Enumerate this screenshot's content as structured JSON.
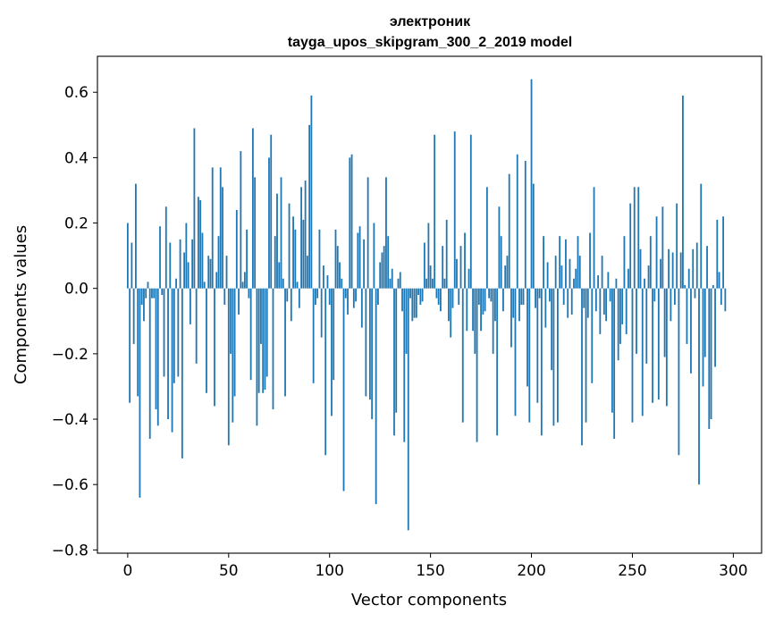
{
  "chart_data": {
    "type": "bar",
    "title": "электроник",
    "subtitle": "tayga_upos_skipgram_300_2_2019 model",
    "xlabel": "Vector components",
    "ylabel": "Components values",
    "xlim": [
      -15,
      314
    ],
    "ylim": [
      -0.81,
      0.71
    ],
    "xticks": [
      0,
      50,
      100,
      150,
      200,
      250,
      300
    ],
    "yticks": [
      -0.8,
      -0.6,
      -0.4,
      -0.2,
      0.0,
      0.2,
      0.4,
      0.6
    ],
    "xtick_labels": [
      "0",
      "50",
      "100",
      "150",
      "200",
      "250",
      "300"
    ],
    "ytick_labels": [
      "−0.8",
      "−0.6",
      "−0.4",
      "−0.2",
      "0.0",
      "0.2",
      "0.4",
      "0.6"
    ],
    "bar_color": "#1f77b4",
    "grid": false,
    "categories": "component index 0–299",
    "values": [
      0.2,
      -0.35,
      0.14,
      -0.17,
      0.32,
      -0.33,
      -0.64,
      -0.05,
      -0.1,
      -0.03,
      0.02,
      -0.46,
      -0.03,
      -0.03,
      -0.37,
      -0.42,
      0.19,
      -0.02,
      -0.27,
      0.25,
      -0.4,
      0.14,
      -0.44,
      -0.29,
      0.03,
      -0.27,
      0.15,
      -0.52,
      0.11,
      0.2,
      0.08,
      -0.11,
      0.15,
      0.49,
      -0.23,
      0.28,
      0.27,
      0.17,
      0.02,
      -0.32,
      0.1,
      0.09,
      0.37,
      -0.36,
      0.05,
      0.16,
      0.37,
      0.31,
      -0.05,
      0.1,
      -0.48,
      -0.2,
      -0.41,
      -0.33,
      0.24,
      -0.08,
      0.42,
      0.02,
      0.05,
      0.18,
      -0.03,
      -0.28,
      0.49,
      0.34,
      -0.42,
      -0.32,
      -0.17,
      -0.32,
      -0.31,
      -0.27,
      0.4,
      0.47,
      -0.37,
      0.16,
      0.29,
      0.08,
      0.34,
      0.03,
      -0.33,
      -0.04,
      0.26,
      -0.1,
      0.22,
      0.18,
      0.02,
      -0.06,
      0.31,
      0.21,
      0.33,
      0.1,
      0.5,
      0.59,
      -0.29,
      -0.05,
      -0.03,
      0.18,
      -0.15,
      0.07,
      -0.51,
      0.04,
      -0.05,
      -0.39,
      -0.28,
      0.18,
      0.13,
      0.08,
      0.03,
      -0.62,
      -0.03,
      -0.08,
      0.4,
      0.41,
      -0.06,
      -0.04,
      0.17,
      0.19,
      -0.12,
      0.15,
      -0.33,
      0.34,
      -0.34,
      -0.4,
      0.2,
      -0.66,
      -0.05,
      0.08,
      0.11,
      0.13,
      0.34,
      0.16,
      0.03,
      0.06,
      -0.45,
      -0.38,
      0.03,
      0.05,
      -0.07,
      -0.47,
      -0.2,
      -0.74,
      -0.03,
      -0.1,
      -0.09,
      -0.09,
      -0.02,
      -0.05,
      -0.04,
      0.14,
      0.03,
      0.2,
      0.07,
      0.03,
      0.47,
      -0.03,
      -0.05,
      -0.07,
      0.13,
      0.03,
      0.21,
      -0.1,
      -0.15,
      -0.06,
      0.48,
      0.09,
      -0.05,
      0.13,
      -0.41,
      0.17,
      -0.13,
      0.06,
      0.47,
      -0.13,
      -0.2,
      -0.47,
      -0.05,
      -0.13,
      -0.08,
      -0.07,
      0.31,
      -0.03,
      -0.04,
      -0.2,
      -0.1,
      -0.45,
      0.25,
      0.16,
      -0.07,
      0.07,
      0.1,
      0.35,
      -0.18,
      -0.09,
      -0.39,
      0.41,
      -0.1,
      -0.05,
      -0.05,
      0.39,
      -0.3,
      -0.41,
      0.64,
      0.32,
      -0.06,
      -0.35,
      -0.03,
      -0.45,
      0.16,
      -0.12,
      0.08,
      -0.04,
      -0.25,
      -0.42,
      0.1,
      -0.41,
      0.16,
      0.07,
      -0.05,
      0.15,
      -0.09,
      0.09,
      -0.08,
      0.03,
      0.06,
      0.16,
      0.1,
      -0.48,
      -0.06,
      -0.41,
      -0.09,
      0.17,
      -0.29,
      0.31,
      -0.07,
      0.04,
      -0.14,
      0.1,
      -0.08,
      -0.1,
      0.05,
      -0.04,
      -0.38,
      -0.46,
      0.03,
      -0.22,
      -0.17,
      -0.11,
      0.16,
      -0.14,
      0.06,
      0.26,
      -0.41,
      0.31,
      -0.2,
      0.31,
      0.12,
      -0.39,
      0.03,
      -0.23,
      0.07,
      0.16,
      -0.35,
      -0.04,
      0.22,
      -0.34,
      0.09,
      0.25,
      -0.21,
      -0.36,
      0.12,
      -0.1,
      0.11,
      -0.05,
      0.26,
      -0.51,
      0.11,
      0.59,
      0.01,
      -0.17,
      0.06,
      -0.26,
      0.12,
      -0.03,
      0.14,
      -0.6,
      0.32,
      -0.3,
      -0.21,
      0.13,
      -0.43,
      -0.4,
      0.01,
      -0.24,
      0.21,
      0.05,
      -0.05,
      0.22,
      -0.07
    ]
  }
}
